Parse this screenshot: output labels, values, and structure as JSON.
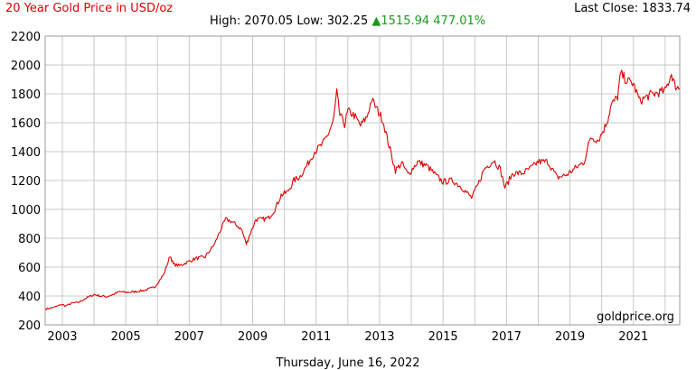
{
  "header": {
    "title": "20 Year Gold Price in USD/oz",
    "last_close_label": "Last Close:",
    "last_close_value": "1833.74",
    "high_label": "High:",
    "high_value": "2070.05",
    "low_label": "Low:",
    "low_value": "302.25",
    "change_arrow": "▲",
    "change_value": "1515.94",
    "change_pct": "477.01%"
  },
  "watermark": "goldprice.org",
  "footer_date": "Thursday, June 16, 2022",
  "colors": {
    "line": "#e00000",
    "title": "#e00000",
    "change": "#1a9a1a",
    "grid": "#c8c8c8"
  },
  "chart_data": {
    "type": "line",
    "title": "20 Year Gold Price in USD/oz",
    "xlabel": "",
    "ylabel": "",
    "xlim": [
      2002.46,
      2022.46
    ],
    "ylim": [
      200,
      2200
    ],
    "grid": true,
    "yticks": [
      200,
      400,
      600,
      800,
      1000,
      1200,
      1400,
      1600,
      1800,
      2000,
      2200
    ],
    "xtick_labels": [
      "2003",
      "2005",
      "2007",
      "2009",
      "2011",
      "2013",
      "2015",
      "2017",
      "2019",
      "2021"
    ],
    "xtick_values": [
      2003,
      2005,
      2007,
      2009,
      2011,
      2013,
      2015,
      2017,
      2019,
      2021
    ],
    "series": [
      {
        "x": [
          2002.46,
          2002.75,
          2003.0,
          2003.1,
          2003.3,
          2003.5,
          2003.75,
          2004.0,
          2004.2,
          2004.4,
          2004.6,
          2004.8,
          2005.0,
          2005.3,
          2005.6,
          2005.9,
          2006.2,
          2006.4,
          2006.5,
          2006.7,
          2006.9,
          2007.2,
          2007.5,
          2007.8,
          2007.95,
          2008.15,
          2008.3,
          2008.5,
          2008.65,
          2008.8,
          2008.9,
          2009.1,
          2009.3,
          2009.5,
          2009.7,
          2009.9,
          2010.1,
          2010.3,
          2010.5,
          2010.7,
          2010.95,
          2011.2,
          2011.4,
          2011.55,
          2011.65,
          2011.75,
          2011.9,
          2012.0,
          2012.2,
          2012.4,
          2012.6,
          2012.75,
          2012.9,
          2013.1,
          2013.3,
          2013.5,
          2013.7,
          2013.9,
          2014.2,
          2014.5,
          2014.8,
          2015.0,
          2015.3,
          2015.6,
          2015.9,
          2016.1,
          2016.3,
          2016.6,
          2016.8,
          2016.95,
          2017.2,
          2017.5,
          2017.8,
          2018.0,
          2018.3,
          2018.6,
          2018.9,
          2019.2,
          2019.45,
          2019.65,
          2019.9,
          2020.1,
          2020.2,
          2020.3,
          2020.5,
          2020.6,
          2020.8,
          2021.0,
          2021.2,
          2021.5,
          2021.8,
          2022.0,
          2022.2,
          2022.3,
          2022.46
        ],
        "y": [
          310,
          322,
          342,
          330,
          350,
          355,
          385,
          410,
          400,
          395,
          410,
          430,
          425,
          430,
          440,
          460,
          550,
          680,
          620,
          610,
          630,
          660,
          670,
          760,
          840,
          930,
          920,
          890,
          860,
          760,
          820,
          930,
          930,
          940,
          1000,
          1100,
          1120,
          1200,
          1230,
          1300,
          1400,
          1450,
          1530,
          1620,
          1810,
          1650,
          1590,
          1680,
          1650,
          1580,
          1640,
          1760,
          1700,
          1620,
          1440,
          1270,
          1320,
          1240,
          1330,
          1300,
          1230,
          1190,
          1200,
          1150,
          1080,
          1170,
          1280,
          1340,
          1280,
          1150,
          1250,
          1250,
          1290,
          1330,
          1330,
          1220,
          1240,
          1290,
          1330,
          1500,
          1480,
          1570,
          1630,
          1720,
          1780,
          1940,
          1890,
          1870,
          1750,
          1790,
          1810,
          1820,
          1940,
          1860,
          1833.74
        ]
      }
    ]
  }
}
